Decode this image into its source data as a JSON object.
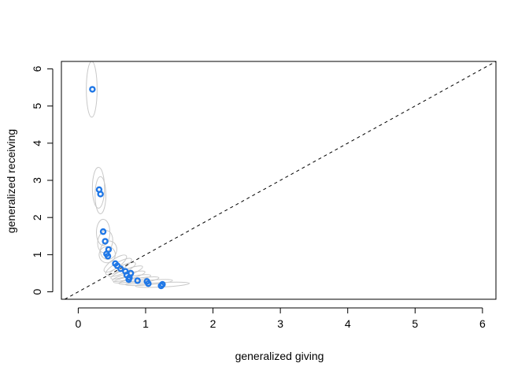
{
  "chart_data": {
    "type": "scatter",
    "title": "",
    "xlabel": "generalized giving",
    "ylabel": "generalized receiving",
    "xlim": [
      -0.25,
      6.2
    ],
    "ylim": [
      -0.2,
      6.2
    ],
    "x_ticks": [
      0,
      1,
      2,
      3,
      4,
      5,
      6
    ],
    "y_ticks": [
      0,
      1,
      2,
      3,
      4,
      5,
      6
    ],
    "grid": false,
    "reference_line": {
      "type": "identity",
      "style": "dashed"
    },
    "point_color": "#1f77e6",
    "ellipse_color": "#c8c8c8",
    "points": [
      {
        "x": 0.21,
        "y": 5.45
      },
      {
        "x": 0.31,
        "y": 2.75
      },
      {
        "x": 0.33,
        "y": 2.63
      },
      {
        "x": 0.37,
        "y": 1.62
      },
      {
        "x": 0.4,
        "y": 1.36
      },
      {
        "x": 0.45,
        "y": 1.14
      },
      {
        "x": 0.42,
        "y": 1.02
      },
      {
        "x": 0.44,
        "y": 0.96
      },
      {
        "x": 0.55,
        "y": 0.76
      },
      {
        "x": 0.58,
        "y": 0.7
      },
      {
        "x": 0.63,
        "y": 0.62
      },
      {
        "x": 0.7,
        "y": 0.55
      },
      {
        "x": 0.78,
        "y": 0.5
      },
      {
        "x": 0.72,
        "y": 0.45
      },
      {
        "x": 0.76,
        "y": 0.38
      },
      {
        "x": 0.75,
        "y": 0.33
      },
      {
        "x": 0.88,
        "y": 0.3
      },
      {
        "x": 1.02,
        "y": 0.28
      },
      {
        "x": 1.04,
        "y": 0.22
      },
      {
        "x": 1.25,
        "y": 0.2
      },
      {
        "x": 1.23,
        "y": 0.16
      }
    ],
    "ellipses": [
      {
        "cx": 0.2,
        "cy": 5.45,
        "rx": 0.08,
        "ry": 0.75,
        "angle": 0
      },
      {
        "cx": 0.3,
        "cy": 2.8,
        "rx": 0.09,
        "ry": 0.55,
        "angle": 0
      },
      {
        "cx": 0.33,
        "cy": 2.6,
        "rx": 0.08,
        "ry": 0.5,
        "angle": 0
      },
      {
        "cx": 0.37,
        "cy": 1.6,
        "rx": 0.1,
        "ry": 0.35,
        "angle": 0
      },
      {
        "cx": 0.4,
        "cy": 1.35,
        "rx": 0.11,
        "ry": 0.3,
        "angle": 10
      },
      {
        "cx": 0.45,
        "cy": 1.12,
        "rx": 0.12,
        "ry": 0.25,
        "angle": 20
      },
      {
        "cx": 0.43,
        "cy": 1.0,
        "rx": 0.12,
        "ry": 0.22,
        "angle": 25
      },
      {
        "cx": 0.55,
        "cy": 0.76,
        "rx": 0.2,
        "ry": 0.12,
        "angle": -35
      },
      {
        "cx": 0.6,
        "cy": 0.68,
        "rx": 0.22,
        "ry": 0.11,
        "angle": -30
      },
      {
        "cx": 0.65,
        "cy": 0.6,
        "rx": 0.22,
        "ry": 0.1,
        "angle": -25
      },
      {
        "cx": 0.72,
        "cy": 0.52,
        "rx": 0.25,
        "ry": 0.09,
        "angle": -20
      },
      {
        "cx": 0.75,
        "cy": 0.42,
        "rx": 0.25,
        "ry": 0.08,
        "angle": -15
      },
      {
        "cx": 0.8,
        "cy": 0.35,
        "rx": 0.28,
        "ry": 0.07,
        "angle": -10
      },
      {
        "cx": 0.9,
        "cy": 0.3,
        "rx": 0.3,
        "ry": 0.07,
        "angle": -8
      },
      {
        "cx": 1.05,
        "cy": 0.25,
        "rx": 0.35,
        "ry": 0.06,
        "angle": -5
      },
      {
        "cx": 1.25,
        "cy": 0.19,
        "rx": 0.4,
        "ry": 0.06,
        "angle": -3
      }
    ]
  }
}
